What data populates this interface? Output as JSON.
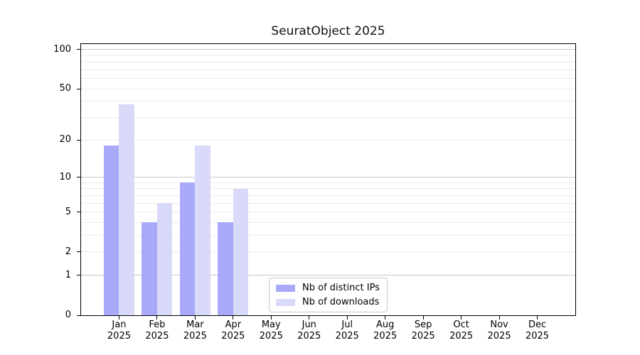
{
  "chart_data": {
    "type": "bar",
    "title": "SeuratObject 2025",
    "scale": "log1p",
    "categories": [
      "Jan",
      "Feb",
      "Mar",
      "Apr",
      "May",
      "Jun",
      "Jul",
      "Aug",
      "Sep",
      "Oct",
      "Nov",
      "Dec"
    ],
    "category_year": "2025",
    "series": [
      {
        "name": "Nb of distinct IPs",
        "key": "distinct-ips",
        "color": "#a9a9f9",
        "values": [
          18,
          4,
          9,
          4,
          0,
          0,
          0,
          0,
          0,
          0,
          0,
          0
        ]
      },
      {
        "name": "Nb of downloads",
        "key": "downloads",
        "color": "#d9d9f9",
        "values": [
          38,
          6,
          18,
          8,
          0,
          0,
          0,
          0,
          0,
          0,
          0,
          0
        ]
      }
    ],
    "xlabel": "",
    "ylabel": "",
    "ylim": [
      0,
      110
    ],
    "y_tick_values": [
      0,
      1,
      2,
      5,
      10,
      20,
      50,
      100
    ],
    "major_gridlines": [
      1,
      10,
      100
    ],
    "minor_gridlines": [
      2,
      3,
      4,
      5,
      6,
      7,
      8,
      9,
      20,
      30,
      40,
      50,
      60,
      70,
      80,
      90
    ],
    "grid": "horizontal",
    "legend_position": "lower center",
    "colors": {
      "major_grid": "#c8c8c8",
      "minor_grid": "#ececec",
      "spine": "#000000",
      "text": "#000000",
      "legend_border": "#c9c9c9",
      "background": "#ffffff"
    }
  }
}
